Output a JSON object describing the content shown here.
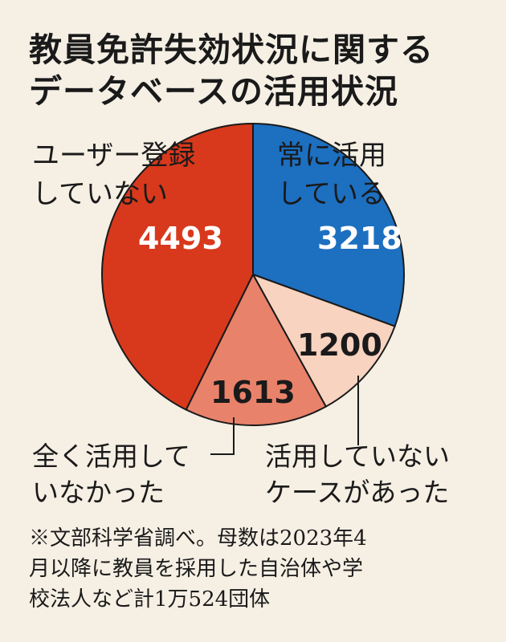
{
  "title_lines": [
    "教員免許失効状況に関する",
    "データベースの活用状況"
  ],
  "chart_data": {
    "type": "pie",
    "slices": [
      {
        "label_lines": [
          "常に活用",
          "している"
        ],
        "value": 3218,
        "color": "#1d6fc0",
        "label_color": "#1a1a1a",
        "value_color": "#ffffff"
      },
      {
        "label_lines": [
          "活用していない",
          "ケースがあった"
        ],
        "value": 1200,
        "color": "#f7d3c0",
        "label_color": "#1a1a1a",
        "value_color": "#1a1a1a"
      },
      {
        "label_lines": [
          "全く活用して",
          "いなかった"
        ],
        "value": 1613,
        "color": "#e9826a",
        "label_color": "#1a1a1a",
        "value_color": "#1a1a1a"
      },
      {
        "label_lines": [
          "ユーザー登録",
          "していない"
        ],
        "value": 4493,
        "color": "#d8391c",
        "label_color": "#1a1a1a",
        "value_color": "#ffffff"
      }
    ]
  },
  "note_lines": [
    "※文部科学省調べ。母数は2023年4",
    "月以降に教員を採用した自治体や学",
    "校法人など計1万524団体"
  ]
}
